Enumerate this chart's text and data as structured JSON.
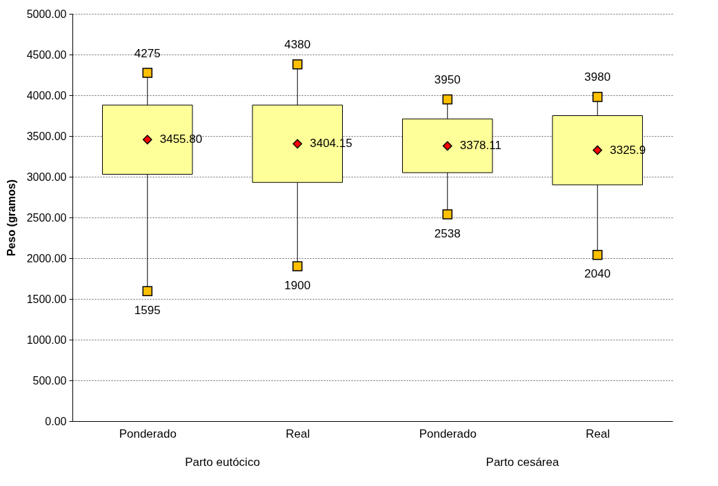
{
  "chart_data": {
    "type": "box",
    "ylabel": "Peso (gramos)",
    "categories": [
      "Ponderado",
      "Real",
      "Ponderado",
      "Real"
    ],
    "boxes": [
      {
        "low": 1595,
        "q1": 3030,
        "q3": 3880,
        "high": 4275
      },
      {
        "low": 1900,
        "q1": 2930,
        "q3": 3880,
        "high": 4380
      },
      {
        "low": 2538,
        "q1": 3050,
        "q3": 3710,
        "high": 3950
      },
      {
        "low": 2040,
        "q1": 2900,
        "q3": 3750,
        "high": 3980
      }
    ],
    "color": "#ffff99",
    "series": [
      {
        "type": "scatter",
        "marker": "square",
        "color": "#ffc000",
        "values": [
          4275,
          4380,
          3950,
          3980
        ],
        "value_labels": [
          "4275",
          "4380",
          "3950",
          "3980"
        ]
      },
      {
        "type": "scatter",
        "marker": "square",
        "color": "#ffc000",
        "values": [
          1595,
          1900,
          2538,
          2040
        ],
        "value_labels": [
          "1595",
          "1900",
          "2538",
          "2040"
        ]
      },
      {
        "type": "scatter",
        "marker": "diamond",
        "color": "#ff0000",
        "values": [
          3455.8,
          3404.15,
          3378.11,
          3325.9
        ],
        "value_labels": [
          "3455.80",
          "3404.15",
          "3378.11",
          "3325.9"
        ]
      }
    ],
    "annotations": [
      "Parto eutócico",
      "Parto cesárea"
    ],
    "ylim": [
      0,
      5000
    ],
    "yticks": [
      {
        "value": 0,
        "label": "0.00"
      },
      {
        "value": 500,
        "label": "500.00"
      },
      {
        "value": 1000,
        "label": "1000.00"
      },
      {
        "value": 1500,
        "label": "1500.00"
      },
      {
        "value": 2000,
        "label": "2000.00"
      },
      {
        "value": 2500,
        "label": "2500.00"
      },
      {
        "value": 3000,
        "label": "3000.00"
      },
      {
        "value": 3500,
        "label": "3500.00"
      },
      {
        "value": 4000,
        "label": "4000.00"
      },
      {
        "value": 4500,
        "label": "4500.00"
      },
      {
        "value": 5000,
        "label": "5000.00"
      }
    ],
    "grid": "y"
  }
}
